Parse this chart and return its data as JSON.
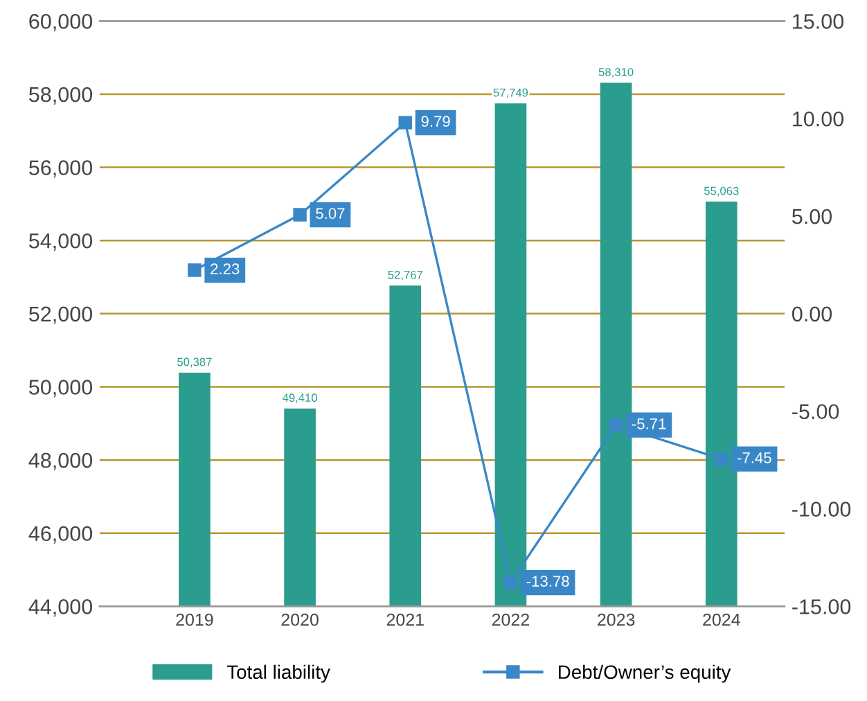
{
  "chart_data": {
    "type": "bar",
    "categories": [
      "2019",
      "2020",
      "2021",
      "2022",
      "2023",
      "2024"
    ],
    "series": [
      {
        "name": "Total liability",
        "color": "#2a9d8f",
        "values": [
          50387,
          49410,
          52767,
          57749,
          58310,
          55063
        ]
      },
      {
        "name": "Debt/Owner’s equity",
        "type": "line",
        "axis": "y2",
        "color": "#3a87c8",
        "values": [
          2.23,
          5.07,
          9.79,
          -13.78,
          -5.71,
          -7.45
        ],
        "marker": "square"
      }
    ],
    "ylim": [
      44000,
      60000
    ],
    "yticks": [
      {
        "value": 44000,
        "label": "44,000"
      },
      {
        "value": 46000,
        "label": "46,000"
      },
      {
        "value": 48000,
        "label": "48,000"
      },
      {
        "value": 50000,
        "label": "50,000"
      },
      {
        "value": 52000,
        "label": "52,000"
      },
      {
        "value": 54000,
        "label": "54,000"
      },
      {
        "value": 56000,
        "label": "56,000"
      },
      {
        "value": 58000,
        "label": "58,000"
      },
      {
        "value": 60000,
        "label": "60,000"
      }
    ],
    "y2lim": [
      -15,
      15
    ],
    "y2ticks": [
      {
        "value": -15,
        "label": "-15.00"
      },
      {
        "value": -10,
        "label": "-10.00"
      },
      {
        "value": -5,
        "label": "-5.00"
      },
      {
        "value": 0,
        "label": "0.00"
      },
      {
        "value": 5,
        "label": "5.00"
      },
      {
        "value": 10,
        "label": "10.00"
      },
      {
        "value": 15,
        "label": "15.00"
      }
    ],
    "value_labels": [
      [
        "50,387",
        "49,410",
        "52,767",
        "57,749",
        "58,310",
        "55,063"
      ],
      [
        "2.23",
        "5.07",
        "9.79",
        "-13.78",
        "-5.71",
        "-7.45"
      ]
    ],
    "grid": "y",
    "legend": "bottom"
  }
}
